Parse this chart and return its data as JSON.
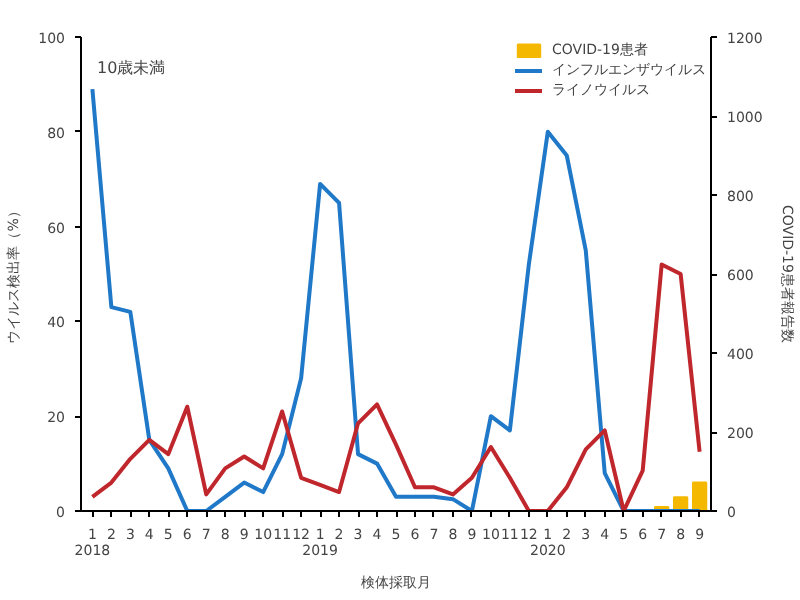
{
  "chart_data": {
    "type": "line",
    "xlabel": "検体採取月",
    "ylabel": "ウイルス検出率（%）",
    "y2label": "COVID-19患者報告数",
    "annotations": [
      "10歳未満"
    ],
    "categories": [
      "1\n2018",
      "2",
      "3",
      "4",
      "5",
      "6",
      "7",
      "8",
      "9",
      "10",
      "11",
      "12",
      "1\n2019",
      "2",
      "3",
      "4",
      "5",
      "6",
      "7",
      "8",
      "9",
      "10",
      "11",
      "12",
      "1\n2020",
      "2",
      "3",
      "4",
      "5",
      "6",
      "7",
      "8",
      "9"
    ],
    "series": [
      {
        "name": "COVID-19患者",
        "type": "bar",
        "axis": "y2",
        "color": "#f5b800",
        "values": [
          null,
          null,
          null,
          null,
          null,
          null,
          null,
          null,
          null,
          null,
          null,
          null,
          null,
          null,
          null,
          null,
          null,
          null,
          null,
          null,
          null,
          null,
          null,
          null,
          null,
          null,
          null,
          null,
          null,
          null,
          10,
          35,
          72
        ]
      },
      {
        "name": "インフルエンザウイルス",
        "color": "#1f78c8",
        "values": [
          89,
          43,
          42,
          15,
          9,
          0,
          0,
          3,
          6,
          4,
          12,
          28,
          69,
          65,
          12,
          10,
          3,
          3,
          3,
          2.5,
          0,
          20,
          17,
          52,
          80,
          75,
          55,
          8,
          0,
          0,
          0,
          0,
          0
        ]
      },
      {
        "name": "ライノウイルス",
        "color": "#c0272d",
        "values": [
          3,
          6,
          11,
          15,
          12,
          22,
          3.5,
          9,
          11.5,
          9,
          21,
          7,
          5.5,
          4,
          18.5,
          22.5,
          14,
          5,
          5,
          3.5,
          7,
          13.5,
          7,
          0,
          0,
          5,
          13,
          17,
          0,
          8.5,
          52,
          50,
          12.5
        ]
      }
    ],
    "ylim": [
      0,
      100
    ],
    "yticks": [
      0,
      20,
      40,
      60,
      80,
      100
    ],
    "y2lim": [
      0,
      1200
    ],
    "y2ticks": [
      0,
      200,
      400,
      600,
      800,
      1000,
      1200
    ],
    "grid": false,
    "legend": "top right",
    "line_style": "solid",
    "marker": "none"
  }
}
